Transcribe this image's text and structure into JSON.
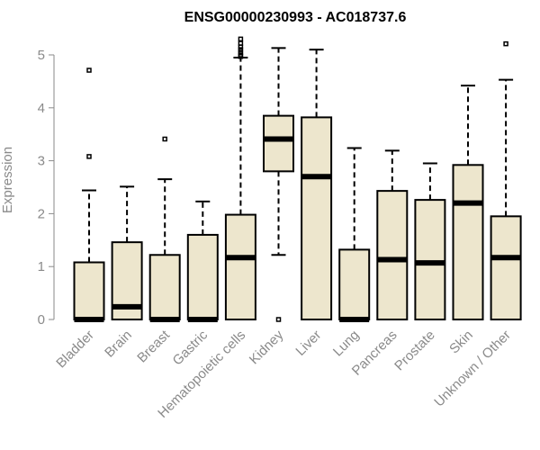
{
  "chart_data": {
    "type": "box",
    "title": "ENSG00000230993 - AC018737.6",
    "xlabel": "",
    "ylabel": "Expression",
    "ylim": [
      0,
      5.3
    ],
    "yticks": [
      0,
      1,
      2,
      3,
      4,
      5
    ],
    "colors": {
      "box_fill": "#ede6cd",
      "stroke": "#000000",
      "axis": "#8a8a8a"
    },
    "categories": [
      "Bladder",
      "Brain",
      "Breast",
      "Gastric",
      "Hematopoietic cells",
      "Kidney",
      "Liver",
      "Lung",
      "Pancreas",
      "Prostate",
      "Skin",
      "Unknown / Other"
    ],
    "boxes": [
      {
        "category": "Bladder",
        "low": 0,
        "q1": 0,
        "median": 0,
        "q3": 1.08,
        "high": 2.44,
        "outliers": [
          3.08,
          4.71
        ]
      },
      {
        "category": "Brain",
        "low": 0,
        "q1": 0,
        "median": 0.24,
        "q3": 1.46,
        "high": 2.51,
        "outliers": []
      },
      {
        "category": "Breast",
        "low": 0,
        "q1": 0,
        "median": 0,
        "q3": 1.22,
        "high": 2.65,
        "outliers": [
          3.41
        ]
      },
      {
        "category": "Gastric",
        "low": 0,
        "q1": 0,
        "median": 0,
        "q3": 1.6,
        "high": 2.23,
        "outliers": []
      },
      {
        "category": "Hematopoietic cells",
        "low": 0,
        "q1": 0,
        "median": 1.17,
        "q3": 1.98,
        "high": 4.95,
        "outliers": [
          4.97,
          5.0,
          5.05,
          5.1,
          5.15,
          5.22,
          5.3
        ]
      },
      {
        "category": "Kidney",
        "low": 1.22,
        "q1": 2.8,
        "median": 3.41,
        "q3": 3.85,
        "high": 5.13,
        "outliers": [
          0
        ]
      },
      {
        "category": "Liver",
        "low": 0,
        "q1": 0,
        "median": 2.7,
        "q3": 3.82,
        "high": 5.1,
        "outliers": []
      },
      {
        "category": "Lung",
        "low": 0,
        "q1": 0,
        "median": 0,
        "q3": 1.32,
        "high": 3.24,
        "outliers": []
      },
      {
        "category": "Pancreas",
        "low": 0,
        "q1": 0,
        "median": 1.13,
        "q3": 2.43,
        "high": 3.19,
        "outliers": []
      },
      {
        "category": "Prostate",
        "low": 0,
        "q1": 0,
        "median": 1.07,
        "q3": 2.26,
        "high": 2.95,
        "outliers": []
      },
      {
        "category": "Skin",
        "low": 0,
        "q1": 0,
        "median": 2.2,
        "q3": 2.92,
        "high": 4.42,
        "outliers": []
      },
      {
        "category": "Unknown / Other",
        "low": 0,
        "q1": 0,
        "median": 1.17,
        "q3": 1.95,
        "high": 4.53,
        "outliers": [
          5.21
        ]
      }
    ]
  }
}
